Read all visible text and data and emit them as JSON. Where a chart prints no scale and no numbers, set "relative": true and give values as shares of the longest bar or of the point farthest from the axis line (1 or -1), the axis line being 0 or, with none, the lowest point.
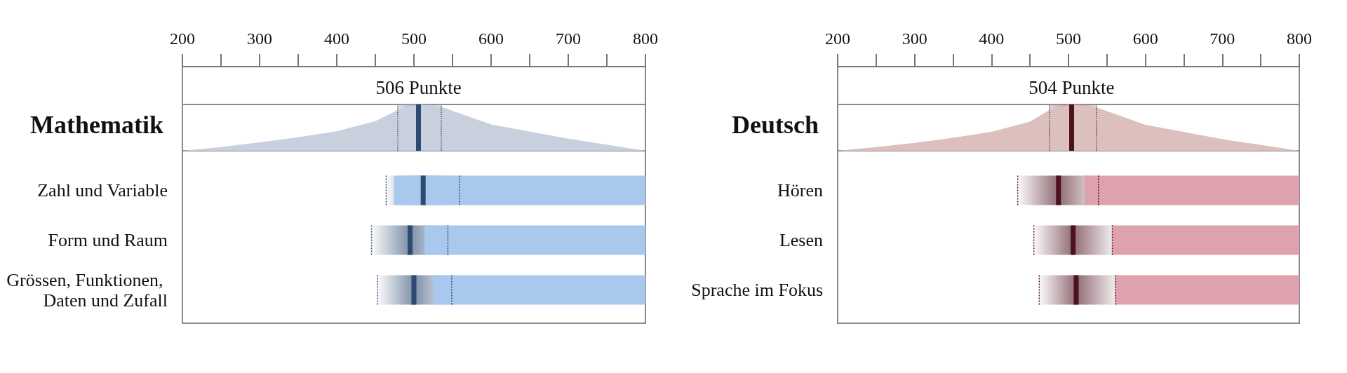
{
  "chart_data": [
    {
      "type": "area",
      "title": "Mathematik",
      "relative": true,
      "color": "#c9d0dd",
      "x": [
        200,
        250,
        300,
        350,
        400,
        450,
        479,
        506,
        535,
        600,
        700,
        800
      ],
      "values": [
        0,
        0.08,
        0.18,
        0.29,
        0.42,
        0.64,
        0.88,
        1,
        0.95,
        0.57,
        0.26,
        0
      ],
      "xlim": [
        200,
        800
      ],
      "xticks": [
        200,
        300,
        400,
        500,
        600,
        700,
        800
      ],
      "ref_lines": [
        {
          "axis": "x",
          "value": 479,
          "line_style": "dotted",
          "color": "#4a5a73"
        },
        {
          "axis": "x",
          "value": 535,
          "line_style": "dotted",
          "color": "#4a5a73"
        },
        {
          "axis": "x",
          "value": 506,
          "label": "506 Punkte",
          "color": "#2d4b72"
        }
      ],
      "bands": [
        {
          "axis": "x",
          "from": 479,
          "to": 535,
          "color": "#9fabc2"
        }
      ]
    },
    {
      "type": "bar",
      "orientation": "horizontal",
      "categories": [
        "Zahl und Variable",
        "Form und Raum",
        "Grössen, Funktionen, Daten und Zufall"
      ],
      "xlim": [
        200,
        800
      ],
      "tick_labels": "y",
      "series": [
        {
          "type": "bar",
          "color": "#a9c8ee",
          "base": [
            474,
            514,
            525
          ],
          "values": [
            326,
            286,
            275
          ]
        },
        {
          "type": "box",
          "color": "#2d4b72",
          "boxes": [
            {
              "low": 464,
              "q1": 464,
              "median": 512,
              "q3": 559,
              "high": 559
            },
            {
              "low": 445,
              "q1": 445,
              "median": 495,
              "q3": 544,
              "high": 544
            },
            {
              "low": 453,
              "q1": 453,
              "median": 500,
              "q3": 549,
              "high": 549
            }
          ]
        }
      ]
    },
    {
      "type": "area",
      "title": "Deutsch",
      "relative": true,
      "color": "#dcc0bd",
      "x": [
        200,
        250,
        300,
        350,
        400,
        450,
        475,
        504,
        536,
        600,
        700,
        800
      ],
      "values": [
        0,
        0.08,
        0.17,
        0.28,
        0.41,
        0.63,
        0.88,
        1,
        0.94,
        0.56,
        0.25,
        0
      ],
      "xlim": [
        200,
        800
      ],
      "xticks": [
        200,
        300,
        400,
        500,
        600,
        700,
        800
      ],
      "ref_lines": [
        {
          "axis": "x",
          "value": 475,
          "line_style": "dotted",
          "color": "#6d3a48"
        },
        {
          "axis": "x",
          "value": 536,
          "line_style": "dotted",
          "color": "#6d3a48"
        },
        {
          "axis": "x",
          "value": 504,
          "label": "504 Punkte",
          "color": "#4d1120"
        }
      ],
      "bands": [
        {
          "axis": "x",
          "from": 475,
          "to": 536,
          "color": "#b98a90"
        }
      ]
    },
    {
      "type": "bar",
      "orientation": "horizontal",
      "categories": [
        "Hören",
        "Lesen",
        "Sprache im Fokus"
      ],
      "xlim": [
        200,
        800
      ],
      "tick_labels": "y",
      "series": [
        {
          "type": "bar",
          "color": "#dda2ae",
          "base": [
            521,
            557,
            561
          ],
          "values": [
            279,
            243,
            239
          ]
        },
        {
          "type": "box",
          "color": "#4d1120",
          "boxes": [
            {
              "low": 434,
              "q1": 434,
              "median": 487,
              "q3": 539,
              "high": 539
            },
            {
              "low": 455,
              "q1": 455,
              "median": 506,
              "q3": 557,
              "high": 557
            },
            {
              "low": 462,
              "q1": 462,
              "median": 510,
              "q3": 561,
              "high": 561
            }
          ]
        }
      ]
    }
  ]
}
